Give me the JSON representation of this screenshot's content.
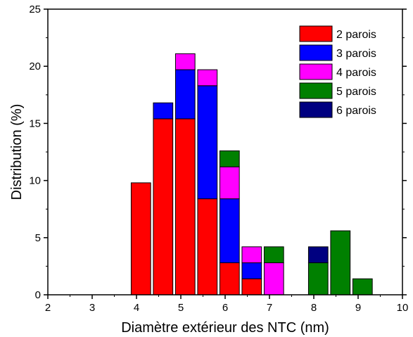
{
  "chart_data": {
    "type": "bar",
    "stacked": true,
    "xlabel": "Diamètre extérieur des NTC (nm)",
    "ylabel": "Distribution (%)",
    "xlim": [
      2,
      10
    ],
    "ylim": [
      0,
      25
    ],
    "x_ticks": [
      "2",
      "3",
      "4",
      "5",
      "6",
      "7",
      "8",
      "9",
      "10"
    ],
    "y_ticks": [
      "0",
      "5",
      "10",
      "15",
      "20",
      "25"
    ],
    "bar_width": 0.44,
    "x": [
      4.1,
      4.6,
      5.1,
      5.6,
      6.1,
      6.6,
      7.1,
      8.1,
      8.6,
      9.1
    ],
    "series": [
      {
        "name": "2 parois",
        "color": "#ff0000",
        "values": [
          9.8,
          15.4,
          15.4,
          8.4,
          2.8,
          1.4,
          0,
          0,
          0,
          0
        ]
      },
      {
        "name": "3 parois",
        "color": "#0000ff",
        "values": [
          0,
          1.4,
          4.3,
          9.9,
          5.6,
          1.4,
          0,
          0,
          0,
          0
        ]
      },
      {
        "name": "4 parois",
        "color": "#ff00ff",
        "values": [
          0,
          0,
          1.4,
          1.4,
          2.8,
          1.4,
          2.8,
          0,
          0,
          0
        ]
      },
      {
        "name": "5 parois",
        "color": "#008000",
        "values": [
          0,
          0,
          0,
          0,
          1.4,
          0,
          1.4,
          2.8,
          5.6,
          1.4
        ]
      },
      {
        "name": "6 parois",
        "color": "#000080",
        "values": [
          0,
          0,
          0,
          0,
          0,
          0,
          0,
          1.4,
          0,
          0
        ]
      }
    ],
    "legend": "top-right",
    "grid": false
  }
}
